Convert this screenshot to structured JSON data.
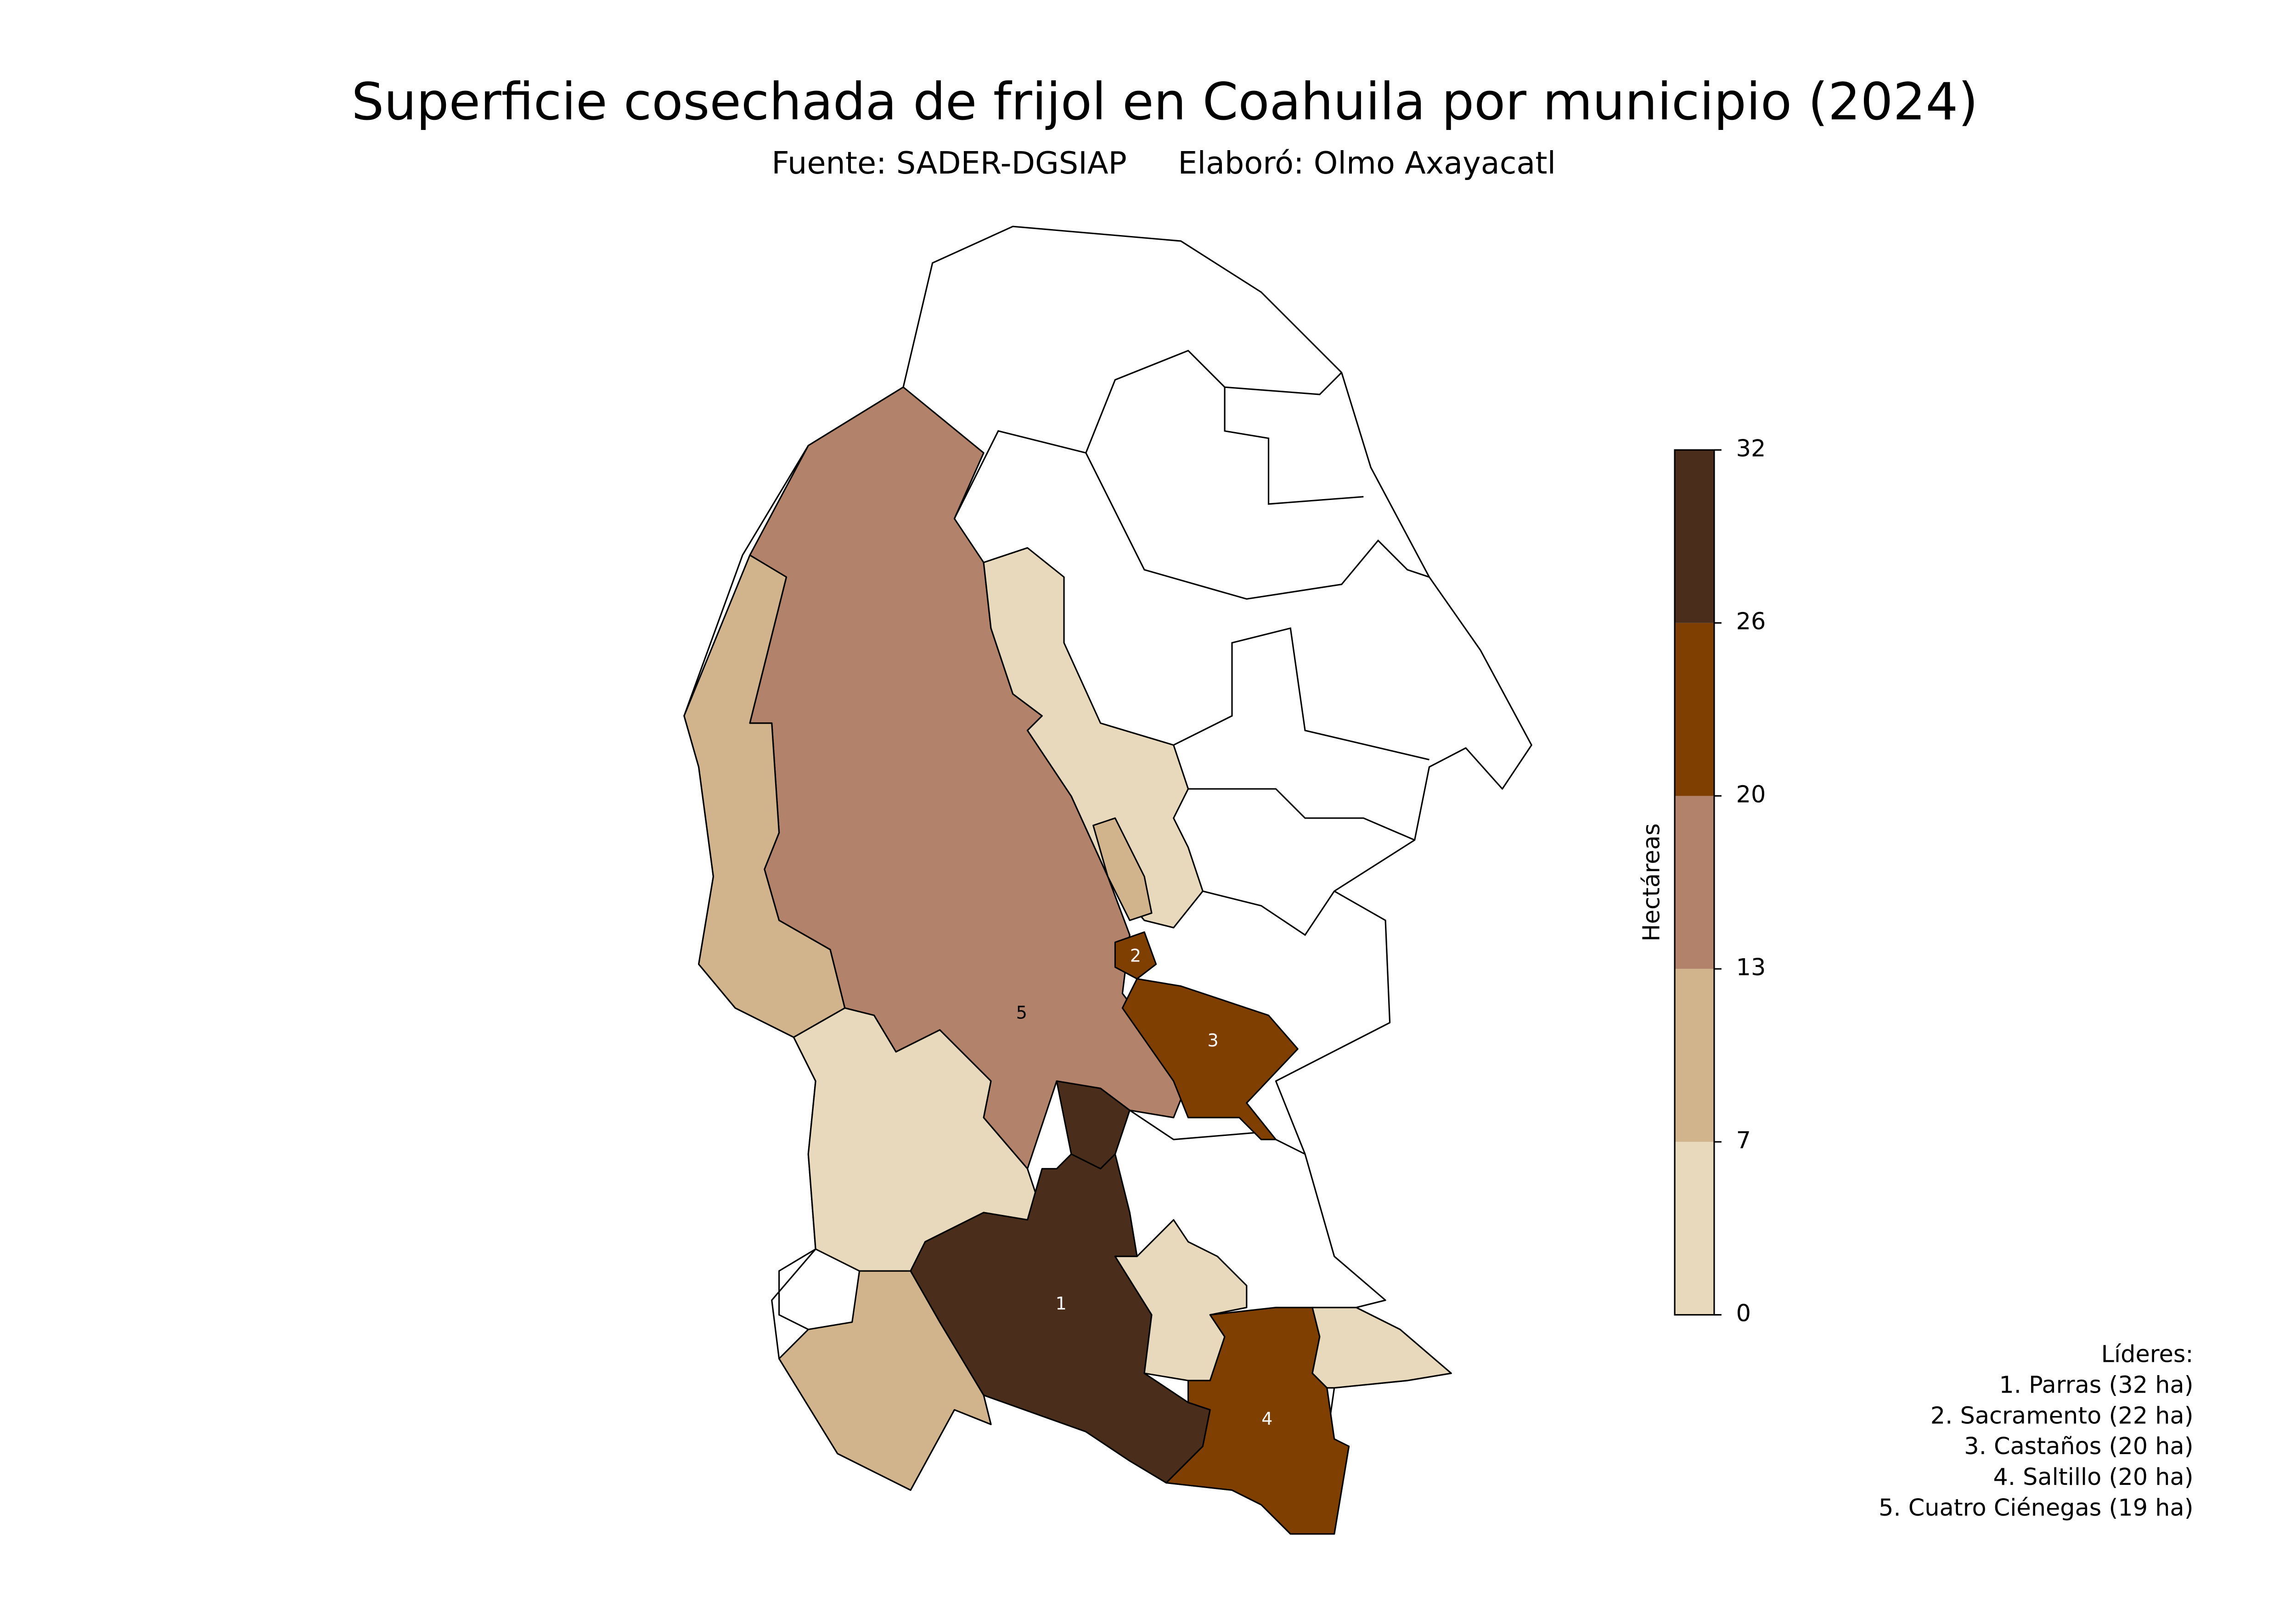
{
  "title": "Superficie cosechada de frijol en Coahuila por municipio (2024)",
  "source": "Fuente: SADER-DGSIAP",
  "author": "Elaboró: Olmo Axayacatl",
  "colorbar": {
    "label": "Hectáreas",
    "ticks": [
      0,
      7,
      13,
      20,
      26,
      32
    ],
    "colors": [
      "#e8d8bc",
      "#d2b48c",
      "#b3826a",
      "#7f3f00",
      "#4a2e1b"
    ]
  },
  "map_labels": [
    "1",
    "2",
    "3",
    "4",
    "5"
  ],
  "leaders": {
    "title": "Líderes:",
    "items": [
      "1. Parras (32 ha)",
      "2. Sacramento (22 ha)",
      "3. Castaños (20 ha)",
      "4. Saltillo (20 ha)",
      "5. Cuatro Ciénegas (19 ha)"
    ]
  }
}
